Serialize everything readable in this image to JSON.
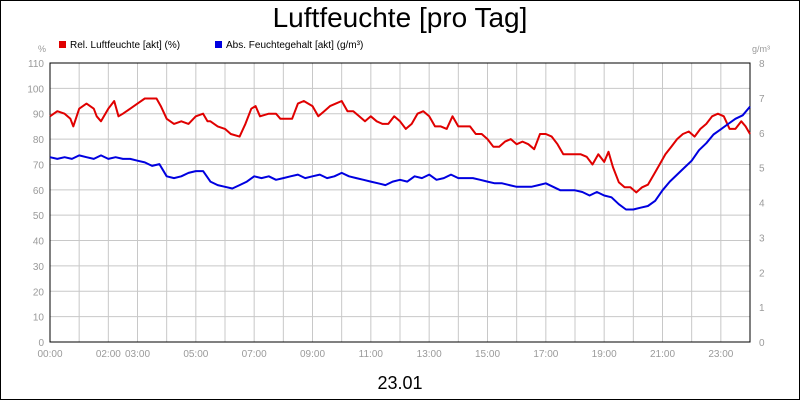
{
  "chart_data": {
    "type": "line",
    "title": "Luftfeuchte [pro Tag]",
    "date_label": "23.01",
    "y_left": {
      "unit": "%",
      "lim": [
        0,
        110
      ],
      "ticks": [
        0,
        10,
        20,
        30,
        40,
        50,
        60,
        70,
        80,
        90,
        100,
        110
      ]
    },
    "y_right": {
      "unit": "g/m³",
      "lim": [
        0,
        8
      ],
      "ticks": [
        0,
        1,
        2,
        3,
        4,
        5,
        6,
        7,
        8
      ]
    },
    "x": {
      "lim": [
        0,
        24
      ],
      "tick_labels": [
        "00:00",
        "02:00",
        "03:00",
        "05:00",
        "07:00",
        "09:00",
        "11:00",
        "13:00",
        "15:00",
        "17:00",
        "19:00",
        "21:00",
        "23:00"
      ],
      "tick_hours": [
        0,
        2,
        3,
        5,
        7,
        9,
        11,
        13,
        15,
        17,
        19,
        21,
        23
      ]
    },
    "grid": true,
    "legend_position": "top-left",
    "series": [
      {
        "name": "Rel. Luftfeuchte [akt] (%)",
        "color": "#e00000",
        "axis": "left",
        "points": [
          [
            0,
            89
          ],
          [
            0.25,
            91
          ],
          [
            0.5,
            90
          ],
          [
            0.7,
            88
          ],
          [
            0.8,
            85
          ],
          [
            1.0,
            92
          ],
          [
            1.25,
            94
          ],
          [
            1.5,
            92
          ],
          [
            1.6,
            89
          ],
          [
            1.75,
            87
          ],
          [
            2.0,
            92
          ],
          [
            2.2,
            95
          ],
          [
            2.35,
            89
          ],
          [
            2.5,
            90
          ],
          [
            2.75,
            92
          ],
          [
            3.0,
            94
          ],
          [
            3.25,
            96
          ],
          [
            3.5,
            96
          ],
          [
            3.65,
            96
          ],
          [
            3.8,
            93
          ],
          [
            4.0,
            88
          ],
          [
            4.25,
            86
          ],
          [
            4.5,
            87
          ],
          [
            4.75,
            86
          ],
          [
            5.0,
            89
          ],
          [
            5.25,
            90
          ],
          [
            5.4,
            87
          ],
          [
            5.5,
            87
          ],
          [
            5.75,
            85
          ],
          [
            6.0,
            84
          ],
          [
            6.2,
            82
          ],
          [
            6.5,
            81
          ],
          [
            6.7,
            86
          ],
          [
            6.9,
            92
          ],
          [
            7.05,
            93
          ],
          [
            7.2,
            89
          ],
          [
            7.5,
            90
          ],
          [
            7.75,
            90
          ],
          [
            7.9,
            88
          ],
          [
            8.1,
            88
          ],
          [
            8.3,
            88
          ],
          [
            8.5,
            94
          ],
          [
            8.7,
            95
          ],
          [
            9.0,
            93
          ],
          [
            9.2,
            89
          ],
          [
            9.4,
            91
          ],
          [
            9.6,
            93
          ],
          [
            9.8,
            94
          ],
          [
            10.0,
            95
          ],
          [
            10.2,
            91
          ],
          [
            10.4,
            91
          ],
          [
            10.6,
            89
          ],
          [
            10.8,
            87
          ],
          [
            11.0,
            89
          ],
          [
            11.2,
            87
          ],
          [
            11.4,
            86
          ],
          [
            11.6,
            86
          ],
          [
            11.8,
            89
          ],
          [
            12.0,
            87
          ],
          [
            12.2,
            84
          ],
          [
            12.4,
            86
          ],
          [
            12.6,
            90
          ],
          [
            12.8,
            91
          ],
          [
            13.0,
            89
          ],
          [
            13.2,
            85
          ],
          [
            13.4,
            85
          ],
          [
            13.6,
            84
          ],
          [
            13.8,
            89
          ],
          [
            14.0,
            85
          ],
          [
            14.2,
            85
          ],
          [
            14.4,
            85
          ],
          [
            14.6,
            82
          ],
          [
            14.8,
            82
          ],
          [
            15.0,
            80
          ],
          [
            15.2,
            77
          ],
          [
            15.4,
            77
          ],
          [
            15.6,
            79
          ],
          [
            15.8,
            80
          ],
          [
            16.0,
            78
          ],
          [
            16.2,
            79
          ],
          [
            16.4,
            78
          ],
          [
            16.6,
            76
          ],
          [
            16.8,
            82
          ],
          [
            17.0,
            82
          ],
          [
            17.2,
            81
          ],
          [
            17.4,
            78
          ],
          [
            17.6,
            74
          ],
          [
            17.8,
            74
          ],
          [
            18.0,
            74
          ],
          [
            18.2,
            74
          ],
          [
            18.4,
            73
          ],
          [
            18.6,
            70
          ],
          [
            18.8,
            74
          ],
          [
            19.0,
            71
          ],
          [
            19.15,
            75
          ],
          [
            19.3,
            69
          ],
          [
            19.5,
            63
          ],
          [
            19.7,
            61
          ],
          [
            19.9,
            61
          ],
          [
            20.1,
            59
          ],
          [
            20.3,
            61
          ],
          [
            20.5,
            62
          ],
          [
            20.7,
            66
          ],
          [
            20.9,
            70
          ],
          [
            21.1,
            74
          ],
          [
            21.3,
            77
          ],
          [
            21.5,
            80
          ],
          [
            21.7,
            82
          ],
          [
            21.9,
            83
          ],
          [
            22.1,
            81
          ],
          [
            22.3,
            84
          ],
          [
            22.5,
            86
          ],
          [
            22.7,
            89
          ],
          [
            22.9,
            90
          ],
          [
            23.1,
            89
          ],
          [
            23.3,
            84
          ],
          [
            23.5,
            84
          ],
          [
            23.7,
            87
          ],
          [
            23.85,
            85
          ],
          [
            24.0,
            82
          ]
        ]
      },
      {
        "name": "Abs. Feuchtegehalt [akt] (g/m³)",
        "color": "#0000e0",
        "axis": "right",
        "points": [
          [
            0,
            5.3
          ],
          [
            0.25,
            5.25
          ],
          [
            0.5,
            5.3
          ],
          [
            0.75,
            5.25
          ],
          [
            1.0,
            5.35
          ],
          [
            1.25,
            5.3
          ],
          [
            1.5,
            5.25
          ],
          [
            1.75,
            5.35
          ],
          [
            2.0,
            5.25
          ],
          [
            2.25,
            5.3
          ],
          [
            2.5,
            5.25
          ],
          [
            2.75,
            5.25
          ],
          [
            3.0,
            5.2
          ],
          [
            3.25,
            5.15
          ],
          [
            3.5,
            5.05
          ],
          [
            3.75,
            5.1
          ],
          [
            4.0,
            4.75
          ],
          [
            4.25,
            4.7
          ],
          [
            4.5,
            4.75
          ],
          [
            4.75,
            4.85
          ],
          [
            5.0,
            4.9
          ],
          [
            5.25,
            4.9
          ],
          [
            5.5,
            4.6
          ],
          [
            5.75,
            4.5
          ],
          [
            6.0,
            4.45
          ],
          [
            6.25,
            4.4
          ],
          [
            6.5,
            4.5
          ],
          [
            6.75,
            4.6
          ],
          [
            7.0,
            4.75
          ],
          [
            7.25,
            4.7
          ],
          [
            7.5,
            4.75
          ],
          [
            7.75,
            4.65
          ],
          [
            8.0,
            4.7
          ],
          [
            8.25,
            4.75
          ],
          [
            8.5,
            4.8
          ],
          [
            8.75,
            4.7
          ],
          [
            9.0,
            4.75
          ],
          [
            9.25,
            4.8
          ],
          [
            9.5,
            4.7
          ],
          [
            9.75,
            4.75
          ],
          [
            10.0,
            4.85
          ],
          [
            10.25,
            4.75
          ],
          [
            10.5,
            4.7
          ],
          [
            10.75,
            4.65
          ],
          [
            11.0,
            4.6
          ],
          [
            11.25,
            4.55
          ],
          [
            11.5,
            4.5
          ],
          [
            11.75,
            4.6
          ],
          [
            12.0,
            4.65
          ],
          [
            12.25,
            4.6
          ],
          [
            12.5,
            4.75
          ],
          [
            12.75,
            4.7
          ],
          [
            13.0,
            4.8
          ],
          [
            13.25,
            4.65
          ],
          [
            13.5,
            4.7
          ],
          [
            13.75,
            4.8
          ],
          [
            14.0,
            4.7
          ],
          [
            14.25,
            4.7
          ],
          [
            14.5,
            4.7
          ],
          [
            14.75,
            4.65
          ],
          [
            15.0,
            4.6
          ],
          [
            15.25,
            4.55
          ],
          [
            15.5,
            4.55
          ],
          [
            15.75,
            4.5
          ],
          [
            16.0,
            4.45
          ],
          [
            16.25,
            4.45
          ],
          [
            16.5,
            4.45
          ],
          [
            16.75,
            4.5
          ],
          [
            17.0,
            4.55
          ],
          [
            17.25,
            4.45
          ],
          [
            17.5,
            4.35
          ],
          [
            17.75,
            4.35
          ],
          [
            18.0,
            4.35
          ],
          [
            18.25,
            4.3
          ],
          [
            18.5,
            4.2
          ],
          [
            18.75,
            4.3
          ],
          [
            19.0,
            4.2
          ],
          [
            19.25,
            4.15
          ],
          [
            19.5,
            3.95
          ],
          [
            19.75,
            3.8
          ],
          [
            20.0,
            3.8
          ],
          [
            20.25,
            3.85
          ],
          [
            20.5,
            3.9
          ],
          [
            20.75,
            4.05
          ],
          [
            21.0,
            4.35
          ],
          [
            21.25,
            4.6
          ],
          [
            21.5,
            4.8
          ],
          [
            21.75,
            5.0
          ],
          [
            22.0,
            5.2
          ],
          [
            22.25,
            5.5
          ],
          [
            22.5,
            5.7
          ],
          [
            22.75,
            5.95
          ],
          [
            23.0,
            6.1
          ],
          [
            23.25,
            6.25
          ],
          [
            23.5,
            6.4
          ],
          [
            23.75,
            6.5
          ],
          [
            24.0,
            6.75
          ]
        ]
      }
    ]
  }
}
